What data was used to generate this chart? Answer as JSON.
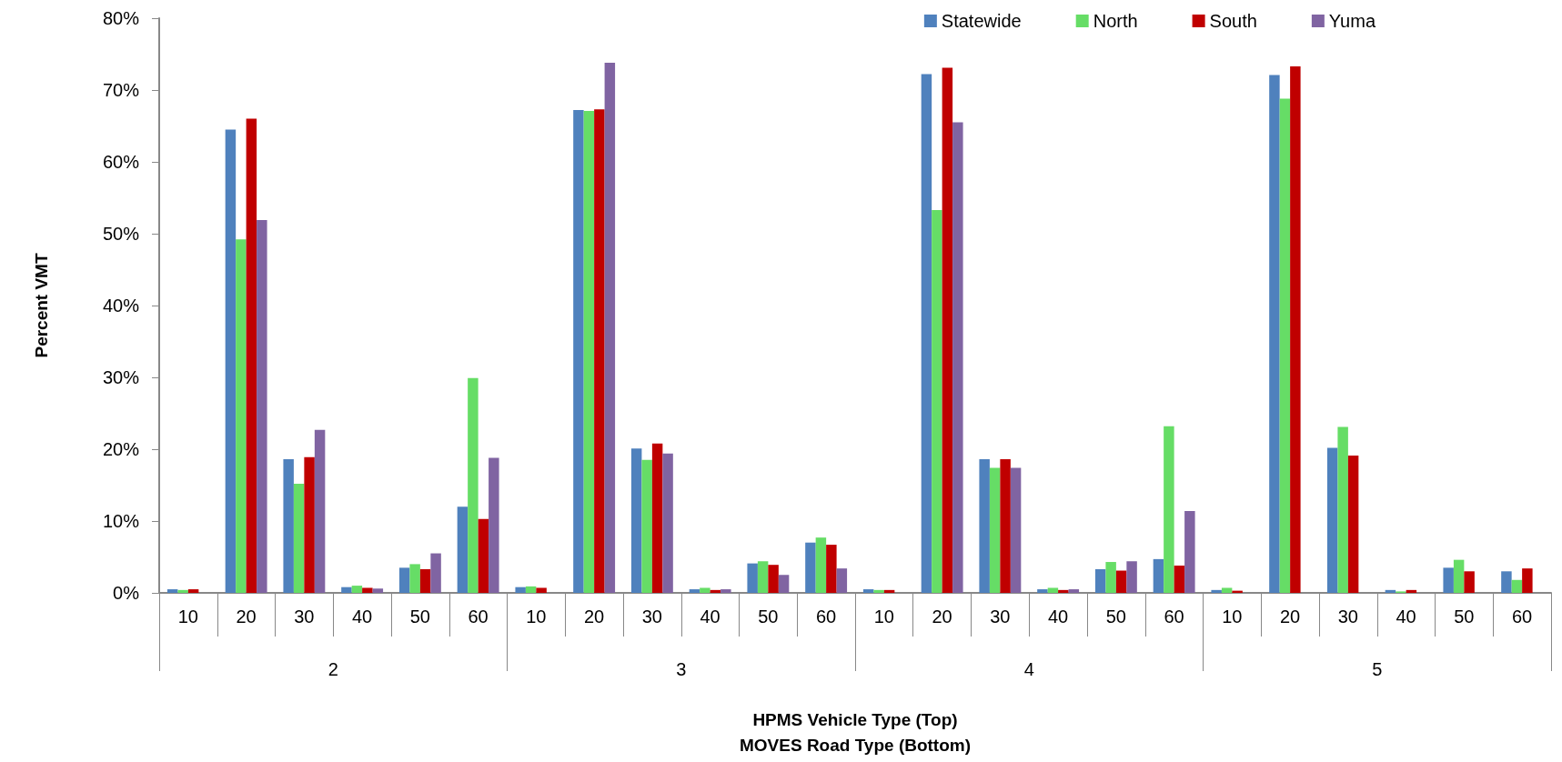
{
  "chart_data": {
    "type": "bar",
    "categories": [
      "10",
      "20",
      "30",
      "40",
      "50",
      "60",
      "10",
      "20",
      "30",
      "40",
      "50",
      "60",
      "10",
      "20",
      "30",
      "40",
      "50",
      "60",
      "10",
      "20",
      "30",
      "40",
      "50",
      "60"
    ],
    "annotations": [
      "2",
      "3",
      "4",
      "5"
    ],
    "xlabel": "HPMS Vehicle Type (Top)\nMOVES Road Type (Bottom)",
    "ylabel": "Percent VMT",
    "series": [
      {
        "name": "Statewide",
        "color": "#4f81bd",
        "values": [
          0.5,
          64.5,
          18.6,
          0.8,
          3.5,
          12.0,
          0.8,
          67.2,
          20.1,
          0.5,
          4.1,
          7.0,
          0.5,
          72.2,
          18.6,
          0.5,
          3.3,
          4.7,
          0.4,
          72.1,
          20.2,
          0.4,
          3.5,
          3.0
        ]
      },
      {
        "name": "North",
        "color": "#66dd66",
        "values": [
          0.4,
          49.2,
          15.2,
          1.0,
          4.0,
          29.9,
          0.9,
          67.1,
          18.5,
          0.7,
          4.4,
          7.7,
          0.4,
          53.3,
          17.4,
          0.7,
          4.3,
          23.2,
          0.7,
          68.8,
          23.1,
          0.2,
          4.6,
          1.8
        ]
      },
      {
        "name": "South",
        "color": "#c00000",
        "values": [
          0.5,
          66.0,
          18.9,
          0.7,
          3.3,
          10.3,
          0.7,
          67.3,
          20.8,
          0.4,
          3.9,
          6.7,
          0.4,
          73.1,
          18.6,
          0.4,
          3.1,
          3.8,
          0.3,
          73.3,
          19.1,
          0.4,
          3.0,
          3.4
        ]
      },
      {
        "name": "Yuma",
        "color": "#8064a2",
        "values": [
          null,
          51.9,
          22.7,
          0.6,
          5.5,
          18.8,
          0,
          73.8,
          19.4,
          0.5,
          2.5,
          3.4,
          0,
          65.5,
          17.4,
          0.5,
          4.4,
          11.4,
          null,
          null,
          null,
          null,
          null,
          null
        ]
      }
    ],
    "ylim": [
      0,
      80
    ],
    "yticks": [
      {
        "value": 0,
        "label": "0%"
      },
      {
        "value": 10,
        "label": "10%"
      },
      {
        "value": 20,
        "label": "20%"
      },
      {
        "value": 30,
        "label": "30%"
      },
      {
        "value": 40,
        "label": "40%"
      },
      {
        "value": 50,
        "label": "50%"
      },
      {
        "value": 60,
        "label": "60%"
      },
      {
        "value": 70,
        "label": "70%"
      },
      {
        "value": 80,
        "label": "80%"
      }
    ],
    "legend": "top right",
    "grid": false
  }
}
